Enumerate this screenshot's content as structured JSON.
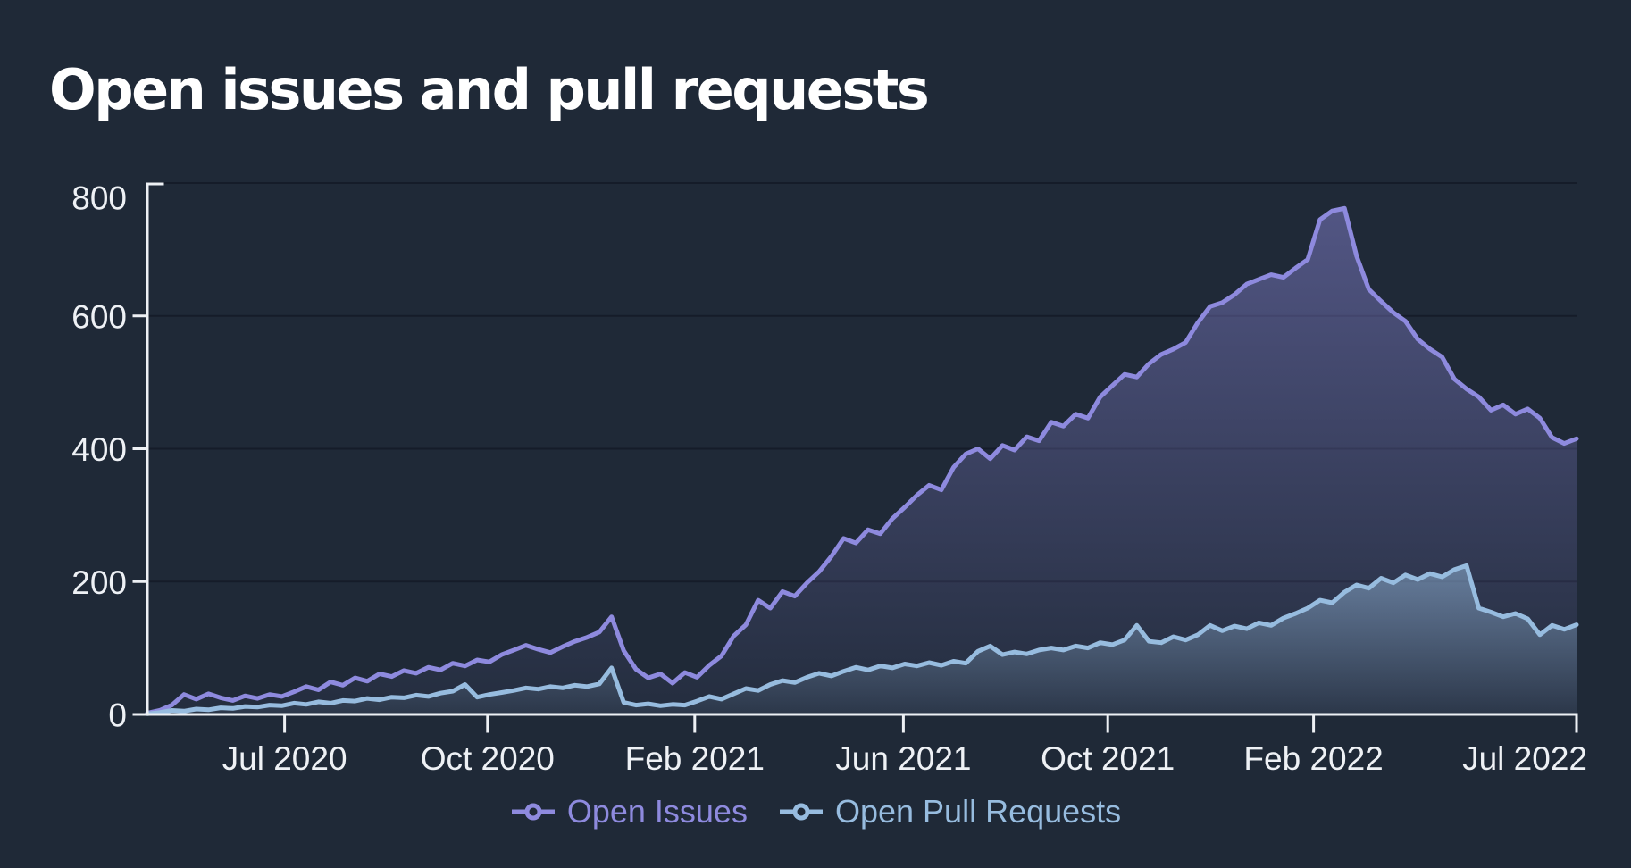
{
  "title": "Open issues and pull requests",
  "colors": {
    "background": "#1f2937",
    "title": "#ffffff",
    "axis": "#edf0f4",
    "grid": "#141b28",
    "open_issues": "#8e8ade",
    "open_pull_requests": "#97bcdf"
  },
  "legend": [
    {
      "label": "Open Issues",
      "color": "#8e8ade"
    },
    {
      "label": "Open Pull Requests",
      "color": "#97bcdf"
    }
  ],
  "chart_data": {
    "type": "area",
    "title": "Open issues and pull requests",
    "xlabel": "",
    "ylabel": "",
    "ylim": [
      0,
      800
    ],
    "y_ticks": [
      0,
      200,
      400,
      600,
      800
    ],
    "grid": true,
    "legend_position": "bottom",
    "x_ticks": [
      {
        "label": "Jul 2020",
        "f": 0.096
      },
      {
        "label": "Oct 2020",
        "f": 0.238
      },
      {
        "label": "Feb 2021",
        "f": 0.383
      },
      {
        "label": "Jun 2021",
        "f": 0.529
      },
      {
        "label": "Oct 2021",
        "f": 0.672
      },
      {
        "label": "Feb 2022",
        "f": 0.816
      },
      {
        "label": "Jul 2022",
        "f": 1.0
      }
    ],
    "x_range_note": "weekly points, May 2020 - Aug 2022",
    "series": [
      {
        "name": "Open Issues",
        "color": "#8e8ade",
        "values": [
          2,
          6,
          14,
          30,
          23,
          31,
          25,
          21,
          28,
          24,
          30,
          27,
          34,
          42,
          37,
          49,
          44,
          55,
          50,
          61,
          57,
          66,
          62,
          71,
          67,
          77,
          73,
          82,
          79,
          90,
          97,
          104,
          98,
          93,
          102,
          110,
          116,
          124,
          147,
          96,
          68,
          55,
          61,
          47,
          63,
          56,
          74,
          88,
          118,
          135,
          172,
          160,
          185,
          178,
          198,
          215,
          238,
          265,
          258,
          278,
          272,
          295,
          312,
          330,
          345,
          338,
          372,
          392,
          400,
          385,
          405,
          398,
          418,
          412,
          440,
          434,
          452,
          446,
          478,
          495,
          512,
          508,
          528,
          542,
          550,
          560,
          590,
          614,
          620,
          632,
          648,
          655,
          662,
          658,
          672,
          685,
          745,
          758,
          762,
          690,
          640,
          622,
          605,
          592,
          565,
          550,
          538,
          505,
          490,
          478,
          458,
          466,
          452,
          460,
          446,
          417,
          408,
          415
        ]
      },
      {
        "name": "Open Pull Requests",
        "color": "#97bcdf",
        "values": [
          1,
          3,
          6,
          5,
          8,
          7,
          10,
          9,
          12,
          11,
          14,
          13,
          17,
          15,
          19,
          17,
          21,
          20,
          24,
          22,
          26,
          25,
          29,
          27,
          32,
          35,
          45,
          26,
          30,
          33,
          36,
          40,
          38,
          42,
          40,
          44,
          42,
          46,
          70,
          18,
          14,
          16,
          13,
          15,
          14,
          20,
          27,
          23,
          31,
          39,
          36,
          45,
          51,
          48,
          56,
          62,
          58,
          65,
          71,
          67,
          73,
          70,
          76,
          73,
          78,
          74,
          80,
          77,
          95,
          103,
          90,
          94,
          91,
          97,
          100,
          97,
          103,
          100,
          108,
          105,
          112,
          134,
          110,
          108,
          117,
          112,
          120,
          134,
          126,
          133,
          129,
          138,
          134,
          145,
          152,
          160,
          172,
          168,
          184,
          195,
          190,
          205,
          198,
          210,
          203,
          212,
          207,
          218,
          224,
          160,
          154,
          147,
          152,
          144,
          120,
          134,
          128,
          135
        ]
      }
    ]
  }
}
